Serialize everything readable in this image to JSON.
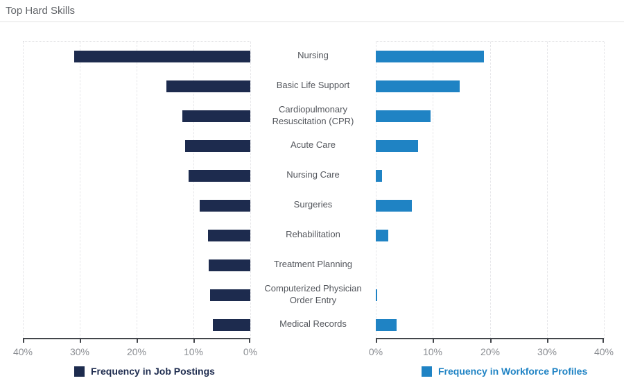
{
  "header": {
    "title": "Top Hard Skills"
  },
  "colors": {
    "job_postings": "#1d2b4e",
    "workforce_profiles": "#1f83c4",
    "axis_line": "#43464b",
    "axis_text": "#8a8d92",
    "category_text": "#53565c",
    "gridline": "#e6e6e9",
    "title_text": "#616468"
  },
  "chart_data": {
    "type": "bar",
    "subtype": "diverging-horizontal",
    "title": "Top Hard Skills",
    "categories": [
      "Nursing",
      "Basic Life Support",
      "Cardiopulmonary Resuscitation (CPR)",
      "Acute Care",
      "Nursing Care",
      "Surgeries",
      "Rehabilitation",
      "Treatment Planning",
      "Computerized Physician Order Entry",
      "Medical Records"
    ],
    "series": [
      {
        "name": "Frequency in Job Postings",
        "side": "left",
        "color": "#1d2b4e",
        "unit": "%",
        "values": [
          31,
          14.7,
          12,
          11.5,
          10.8,
          8.9,
          7.4,
          7.3,
          7.1,
          6.6
        ]
      },
      {
        "name": "Frequency in Workforce Profiles",
        "side": "right",
        "color": "#1f83c4",
        "unit": "%",
        "values": [
          19,
          14.7,
          9.6,
          7.4,
          1.1,
          6.3,
          2.2,
          0,
          0.2,
          3.6
        ]
      }
    ],
    "x_axis": {
      "max": 40,
      "tick_step": 10,
      "left_tick_labels": [
        "40%",
        "30%",
        "20%",
        "10%",
        "0%"
      ],
      "right_tick_labels": [
        "0%",
        "10%",
        "20%",
        "30%",
        "40%"
      ]
    },
    "grid": true,
    "legend_position": "bottom",
    "legend": [
      {
        "label": "Frequency in Job Postings",
        "color": "#1d2b4e"
      },
      {
        "label": "Frequency in Workforce Profiles",
        "color": "#1f83c4"
      }
    ]
  }
}
